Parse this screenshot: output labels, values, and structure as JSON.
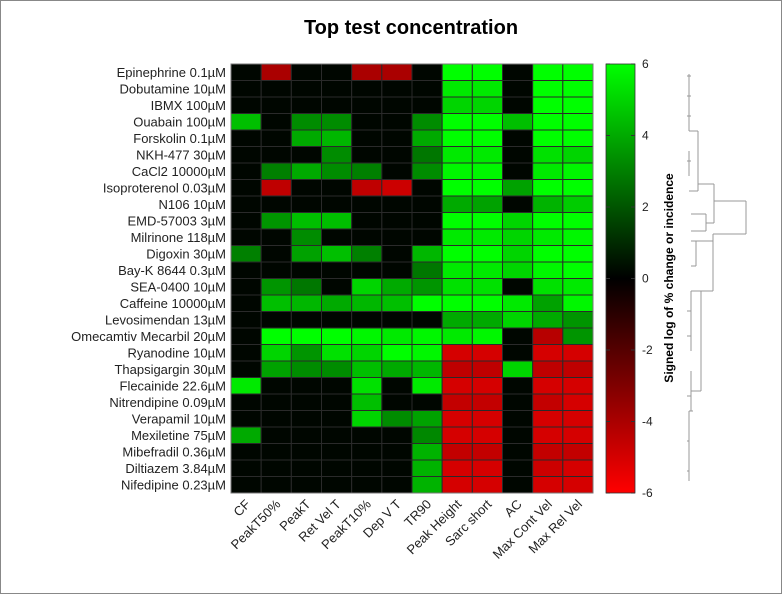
{
  "chart_data": {
    "type": "heatmap",
    "title": "Top test concentration",
    "colorbar_label": "Signed log of % change or incidence",
    "colorbar_range": [
      -6,
      6
    ],
    "colorbar_ticks": [
      "6",
      "4",
      "2",
      "0",
      "-2",
      "-4",
      "-6"
    ],
    "colorbar_tick_values": [
      6,
      4,
      2,
      0,
      -2,
      -4,
      -6
    ],
    "colors": {
      "positive": "#00ff00",
      "zero": "#000000",
      "negative": "#ff0000"
    },
    "columns": [
      "CF",
      "PeakT50%",
      "PeakT",
      "Ret Vel T",
      "PeakT10%",
      "Dep V T",
      "TR90",
      "Peak Height",
      "Sarc short",
      "AC",
      "Max Cont Vel",
      "Max Rel Vel"
    ],
    "rows": [
      "Epinephrine 0.1µM",
      "Dobutamine 10µM",
      "IBMX 100µM",
      "Ouabain 100µM",
      "Forskolin 0.1µM",
      "NKH-477 30µM",
      "CaCl2 10000µM",
      "Isoproterenol 0.03µM",
      "N106 10µM",
      "EMD-57003 3µM",
      "Milrinone 118µM",
      "Digoxin 30µM",
      "Bay-K 8644 0.3µM",
      "SEA-0400 10µM",
      "Caffeine 10000µM",
      "Levosimendan 13µM",
      "Omecamtiv Mecarbil 20µM",
      "Ryanodine 10µM",
      "Thapsigargin 30µM",
      "Flecainide 22.6µM",
      "Nitrendipine 0.09µM",
      "Verapamil 10µM",
      "Mexiletine 75µM",
      "Mibefradil 0.36µM",
      "Diltiazem 3.84µM",
      "Nifedipine 0.23µM"
    ],
    "values": [
      [
        0,
        -4,
        0,
        0,
        -4,
        -4,
        0,
        6,
        6,
        0,
        6,
        6
      ],
      [
        0,
        0,
        0,
        0,
        0,
        0,
        0,
        5.5,
        5.5,
        0,
        6,
        6
      ],
      [
        0,
        0,
        0,
        0,
        0,
        0,
        0,
        5,
        5,
        0,
        6,
        6
      ],
      [
        4.5,
        0,
        3.3,
        3.3,
        0,
        0,
        3.3,
        6,
        6,
        4.5,
        6,
        6
      ],
      [
        0,
        0,
        4,
        4.3,
        0,
        0,
        4,
        6,
        6,
        0,
        6,
        6
      ],
      [
        0,
        0,
        0,
        3.3,
        0,
        0,
        2.8,
        5.5,
        5.5,
        0,
        5.3,
        5
      ],
      [
        0,
        3,
        4,
        3.3,
        3,
        0,
        3.3,
        5.8,
        5.8,
        0,
        5.5,
        5.8
      ],
      [
        0,
        -4.5,
        0,
        0,
        -4.5,
        -4.8,
        0,
        6,
        6,
        3.8,
        6,
        6
      ],
      [
        0,
        0,
        0,
        0,
        0,
        0,
        0,
        4,
        3.8,
        0,
        4.2,
        4.8
      ],
      [
        0,
        3.5,
        4.5,
        4.5,
        0,
        0,
        0,
        6,
        6,
        5,
        6,
        6
      ],
      [
        0,
        0,
        3.3,
        0,
        0,
        0,
        0,
        5.5,
        5.5,
        5,
        5.5,
        5.8
      ],
      [
        3,
        0,
        3.8,
        4.5,
        3,
        0,
        4.3,
        6,
        6,
        5,
        6,
        6
      ],
      [
        0,
        0,
        0,
        0,
        0,
        0,
        2.8,
        5.5,
        5.5,
        5,
        5.8,
        6
      ],
      [
        0,
        3.5,
        2.8,
        0,
        5,
        4,
        3.5,
        5.3,
        5.3,
        0,
        5.3,
        5.5
      ],
      [
        0,
        4.5,
        4.3,
        4,
        4.3,
        4.5,
        6,
        6,
        6,
        5.5,
        3.8,
        5.8
      ],
      [
        0,
        0,
        0,
        0,
        0,
        0,
        0,
        4,
        4,
        5,
        4,
        3.5
      ],
      [
        0,
        6,
        6,
        6,
        5.8,
        5.5,
        5.8,
        5.5,
        5.8,
        0,
        -4.3,
        3.5
      ],
      [
        0,
        5,
        3.5,
        5.3,
        5,
        6,
        5.8,
        -5,
        -5,
        0,
        -5,
        -5
      ],
      [
        0,
        3.8,
        3.3,
        3.3,
        4.5,
        4,
        4.3,
        -4.5,
        -4.5,
        5,
        -4.5,
        -4.5
      ],
      [
        5.5,
        0,
        0,
        0,
        5.3,
        0,
        5.5,
        -5,
        -5,
        0,
        -5,
        -5
      ],
      [
        0,
        0,
        0,
        0,
        4.5,
        0,
        0,
        -4.6,
        -4.6,
        0,
        -4.6,
        -5
      ],
      [
        0,
        0,
        0,
        0,
        5,
        3.3,
        3.8,
        -5,
        -5,
        0,
        -5,
        -5
      ],
      [
        4,
        0,
        0,
        0,
        0,
        0,
        3.2,
        -5,
        -5,
        0,
        -5,
        -5
      ],
      [
        0,
        0,
        0,
        0,
        0,
        0,
        4.2,
        -4.6,
        -4.6,
        0,
        -4.6,
        -4.6
      ],
      [
        0,
        0,
        0,
        0,
        0,
        0,
        4.2,
        -5,
        -5,
        0,
        -4.8,
        -5
      ],
      [
        0,
        0,
        0,
        0,
        0,
        0,
        4.2,
        -5,
        -5,
        0,
        -5,
        -5
      ]
    ]
  }
}
